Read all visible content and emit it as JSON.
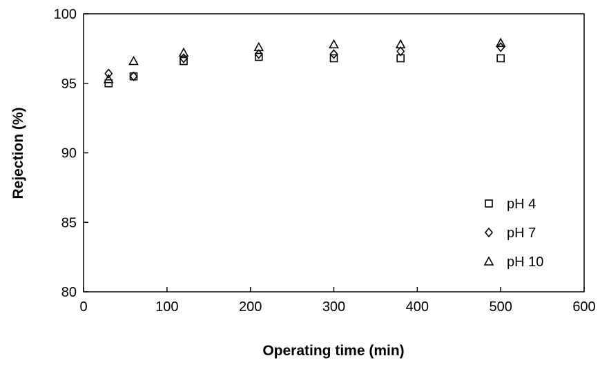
{
  "chart_data": {
    "type": "scatter",
    "title": "",
    "xlabel": "Operating time (min)",
    "ylabel": "Rejection (%)",
    "xlim": [
      0,
      600
    ],
    "ylim": [
      80,
      100
    ],
    "xticks": [
      0,
      100,
      200,
      300,
      400,
      500,
      600
    ],
    "yticks": [
      80,
      85,
      90,
      95,
      100
    ],
    "grid": false,
    "legend_position": "bottom-right",
    "series": [
      {
        "name": "pH 4",
        "marker": "square",
        "x": [
          30,
          60,
          120,
          210,
          300,
          380,
          500
        ],
        "y": [
          95.0,
          95.5,
          96.6,
          96.9,
          96.8,
          96.8,
          96.8
        ]
      },
      {
        "name": "pH 7",
        "marker": "diamond",
        "x": [
          30,
          60,
          120,
          210,
          300,
          380,
          500
        ],
        "y": [
          95.7,
          95.5,
          96.8,
          97.1,
          97.1,
          97.3,
          97.6
        ]
      },
      {
        "name": "pH 10",
        "marker": "triangle",
        "x": [
          30,
          60,
          120,
          210,
          300,
          380,
          500
        ],
        "y": [
          95.3,
          96.6,
          97.2,
          97.6,
          97.8,
          97.8,
          97.9
        ]
      }
    ]
  }
}
